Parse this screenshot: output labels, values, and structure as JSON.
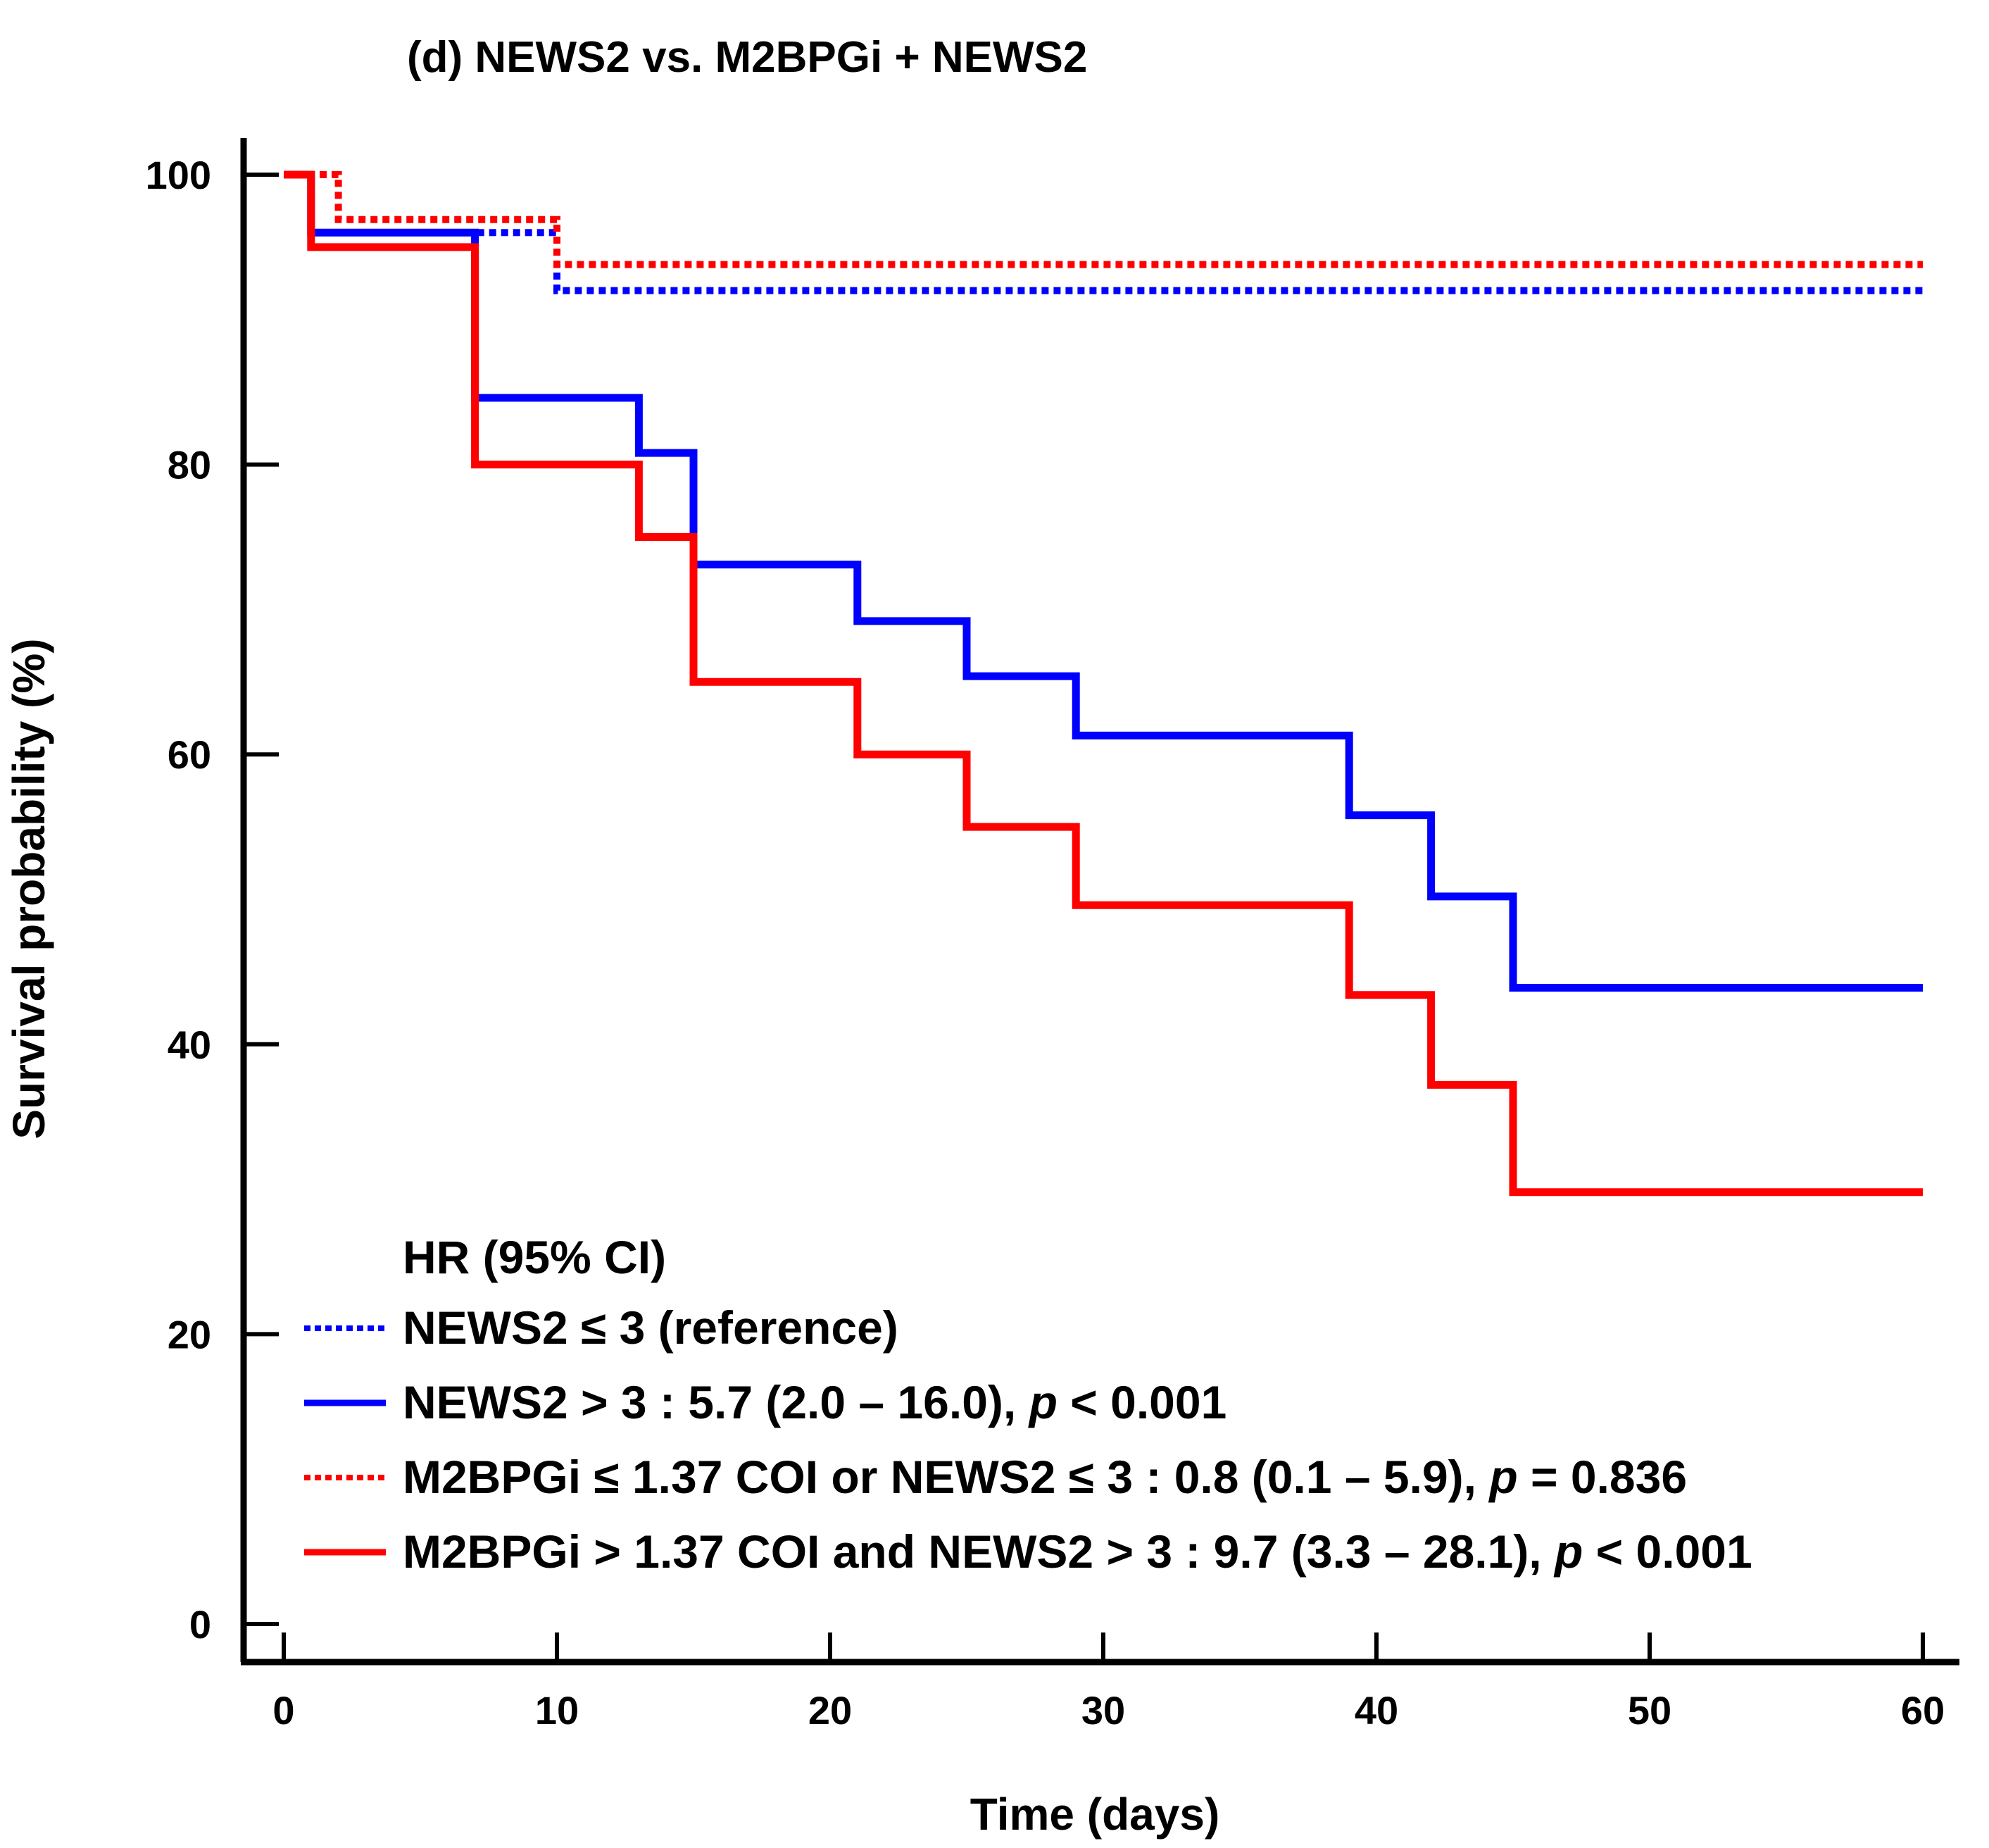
{
  "chart_data": {
    "type": "line",
    "subtype": "kaplan-meier-step",
    "title": "(d) NEWS2 vs. M2BPGi + NEWS2",
    "xlabel": "Time (days)",
    "ylabel": "Survival probability (%)",
    "xlim": [
      0,
      60
    ],
    "ylim": [
      0,
      100
    ],
    "x_ticks": [
      0,
      10,
      20,
      30,
      40,
      50,
      60
    ],
    "y_ticks": [
      0,
      20,
      40,
      60,
      80,
      100
    ],
    "grid": false,
    "legend": {
      "title": "HR (95% CI)",
      "position": "bottom-left"
    },
    "series": [
      {
        "id": "news2-low",
        "color": "#0000FF",
        "style": "dotted",
        "legend_parts": [
          {
            "text": "NEWS2 ≤ 3 (reference)",
            "italic": false
          }
        ],
        "steps": [
          [
            0,
            100
          ],
          [
            1,
            96
          ],
          [
            10,
            92
          ],
          [
            60,
            92
          ]
        ]
      },
      {
        "id": "news2-high",
        "color": "#0000FF",
        "style": "solid",
        "legend_parts": [
          {
            "text": "NEWS2 > 3 : 5.7 (2.0 – 16.0), ",
            "italic": false
          },
          {
            "text": "p",
            "italic": true
          },
          {
            "text": " < 0.001",
            "italic": false
          }
        ],
        "steps": [
          [
            0,
            100
          ],
          [
            1,
            96
          ],
          [
            7,
            84.6
          ],
          [
            13,
            80.8
          ],
          [
            15,
            73.1
          ],
          [
            21,
            69.2
          ],
          [
            25,
            65.4
          ],
          [
            29,
            61.3
          ],
          [
            39,
            55.8
          ],
          [
            42,
            50.2
          ],
          [
            45,
            43.9
          ],
          [
            60,
            43.9
          ]
        ]
      },
      {
        "id": "combo-low",
        "color": "#FF0000",
        "style": "dotted",
        "legend_parts": [
          {
            "text": "M2BPGi ≤ 1.37 COI or NEWS2 ≤ 3 : 0.8 (0.1 – 5.9), ",
            "italic": false
          },
          {
            "text": "p",
            "italic": true
          },
          {
            "text": " = 0.836",
            "italic": false
          }
        ],
        "steps": [
          [
            0,
            100
          ],
          [
            2,
            96.9
          ],
          [
            10,
            93.8
          ],
          [
            60,
            93.8
          ]
        ]
      },
      {
        "id": "combo-high",
        "color": "#FF0000",
        "style": "solid",
        "legend_parts": [
          {
            "text": "M2BPGi > 1.37 COI and NEWS2 > 3 : 9.7 (3.3 – 28.1), ",
            "italic": false
          },
          {
            "text": "p",
            "italic": true
          },
          {
            "text": " < 0.001",
            "italic": false
          }
        ],
        "steps": [
          [
            0,
            100
          ],
          [
            1,
            95
          ],
          [
            7,
            80
          ],
          [
            13,
            75
          ],
          [
            15,
            65
          ],
          [
            21,
            60
          ],
          [
            25,
            55
          ],
          [
            29,
            49.6
          ],
          [
            39,
            43.4
          ],
          [
            42,
            37.2
          ],
          [
            45,
            29.8
          ],
          [
            60,
            29.8
          ]
        ]
      }
    ]
  }
}
